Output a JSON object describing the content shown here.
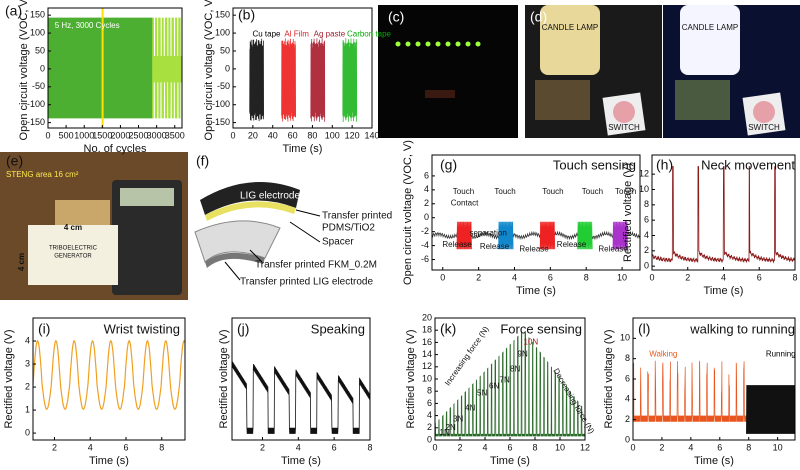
{
  "panels": [
    {
      "label": "(a)",
      "xlabel": "No. of cycles",
      "ylabel": "Open circuit voltage (VOC, V)",
      "xlim": [
        0,
        3700
      ],
      "ylim": [
        -165,
        170
      ],
      "xticks": [
        0,
        500,
        1000,
        1500,
        2000,
        2500,
        3000,
        3500
      ],
      "yticks": [
        -150,
        -100,
        -50,
        0,
        50,
        100,
        150
      ],
      "annotations": [
        "5 Hz, 3000 Cycles"
      ]
    },
    {
      "label": "(b)",
      "xlabel": "Time (s)",
      "ylabel": "Open circuit voltage (VOC, V)",
      "xlim": [
        0,
        140
      ],
      "ylim": [
        -165,
        170
      ],
      "xticks": [
        0,
        20,
        40,
        60,
        80,
        100,
        120,
        140
      ],
      "yticks": [
        -150,
        -100,
        -50,
        0,
        50,
        100,
        150
      ],
      "annotations": [
        "Cu tape",
        "Al Film",
        "Ag paste",
        "Carbon tape"
      ]
    },
    {
      "label": "(g)",
      "title": "Touch sensing",
      "xlabel": "Time (s)",
      "ylabel": "Open circuit voltage (VOC, V)",
      "xlim": [
        -0.6,
        11
      ],
      "ylim": [
        -7.5,
        9
      ],
      "xticks": [
        0,
        2,
        4,
        6,
        8,
        10
      ],
      "yticks": [
        -6,
        -4,
        -2,
        0,
        2,
        4,
        6
      ],
      "annotations": [
        "Touch",
        "Touch",
        "Touch",
        "Touch",
        "Touch",
        "Contact",
        "Release",
        "separation",
        "Release",
        "Release",
        "Release",
        "Release"
      ]
    },
    {
      "label": "(h)",
      "title": "Neck movement",
      "xlabel": "Time (s)",
      "ylabel": "Rectified voltage (V)",
      "xlim": [
        0,
        8
      ],
      "ylim": [
        -0.5,
        14.5
      ],
      "xticks": [
        0,
        2,
        4,
        6,
        8
      ],
      "yticks": [
        0,
        2,
        4,
        6,
        8,
        10,
        12
      ],
      "annotations": []
    },
    {
      "label": "(i)",
      "title": "Wrist twisting",
      "xlabel": "Time (s)",
      "ylabel": "Rectified voltage (V)",
      "xlim": [
        0.8,
        9.3
      ],
      "ylim": [
        -0.3,
        5
      ],
      "xticks": [
        2,
        4,
        6,
        8
      ],
      "yticks": [
        0,
        1,
        2,
        3,
        4
      ],
      "annotations": []
    },
    {
      "label": "(j)",
      "title": "Speaking",
      "xlabel": "Time (s)",
      "ylabel": "Rectified voltage (V)",
      "xlim": [
        0.3,
        8
      ],
      "ylim": [
        0,
        10
      ],
      "xticks": [
        2,
        4,
        6,
        8
      ],
      "yticks": [],
      "annotations": []
    },
    {
      "label": "(k)",
      "title": "Force sensing",
      "xlabel": "Time (s)",
      "ylabel": "Rectified voltage (V)",
      "xlim": [
        0,
        12
      ],
      "ylim": [
        0,
        20
      ],
      "xticks": [
        0,
        2,
        4,
        6,
        8,
        10,
        12
      ],
      "yticks": [
        0,
        2,
        4,
        6,
        8,
        10,
        12,
        14,
        16,
        18,
        20
      ],
      "annotations": [
        "1N",
        "2N",
        "3N",
        "4N",
        "5N",
        "6N",
        "7N",
        "8N",
        "9N",
        "10N",
        "Increasing force (N)",
        "Decreasing force (N)"
      ]
    },
    {
      "label": "(l)",
      "title": "walking to running",
      "xlabel": "Time (s)",
      "ylabel": "Rectified voltage (V)",
      "xlim": [
        0,
        11.2
      ],
      "ylim": [
        0,
        12
      ],
      "xticks": [
        0,
        2,
        4,
        6,
        8,
        10
      ],
      "yticks": [
        0,
        2,
        4,
        6,
        8,
        10
      ],
      "annotations": [
        "Walking",
        "Running"
      ]
    }
  ],
  "photos": {
    "c": {
      "label": "(c)"
    },
    "d": {
      "label": "(d)",
      "texts": [
        "CANDLE LAMP",
        "CANDLE LAMP",
        "SWITCH",
        "SWITCH"
      ]
    },
    "e": {
      "label": "(e)",
      "texts": [
        "STENG area 16 cm²",
        "4 cm",
        "4 cm",
        "TRIBOELECTRIC",
        "GENERATOR"
      ]
    },
    "f": {
      "label": "(f)",
      "texts": [
        "LIG electrode",
        "Transfer printed",
        "PDMS/TiO2",
        "Spacer",
        "Transfer printed FKM_0.2M",
        "Transfer printed LIG electrode"
      ]
    }
  }
}
